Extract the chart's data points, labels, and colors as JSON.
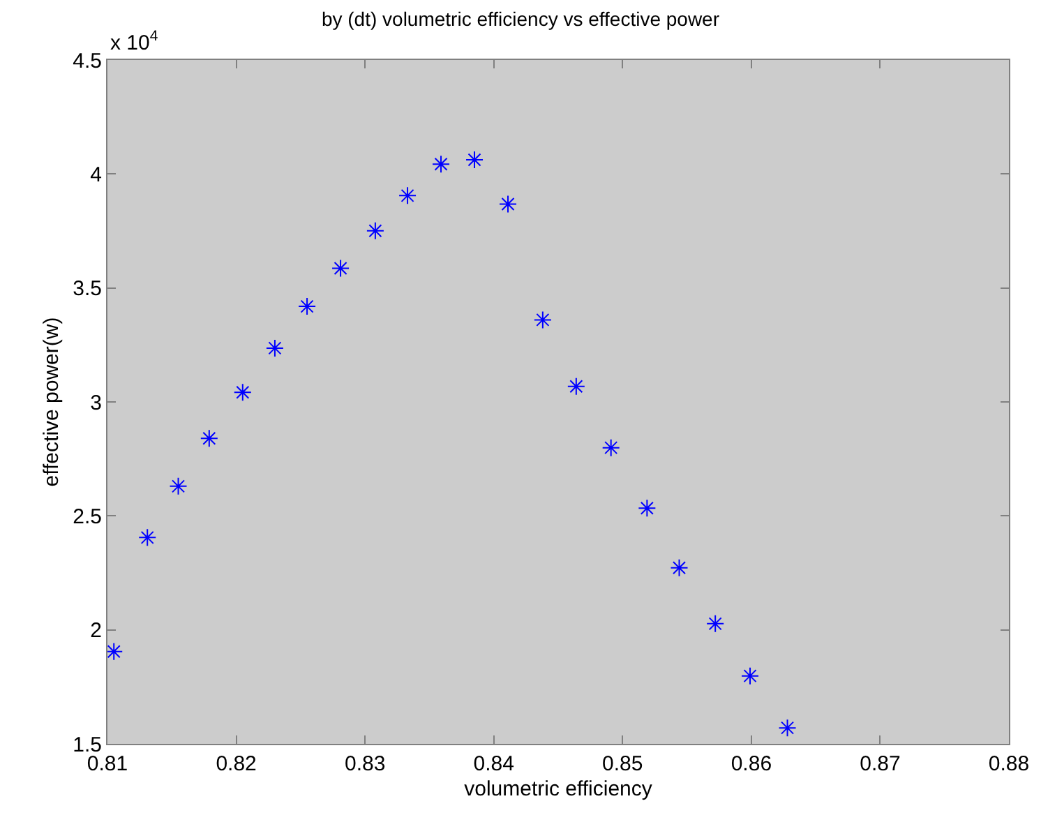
{
  "chart_data": {
    "type": "scatter",
    "title": "by (dt) volumetric efficiency vs effective power",
    "xlabel": "volumetric efficiency",
    "ylabel": "effective power(w)",
    "annotations": [
      "x 10$^{4}$"
    ],
    "x": [
      0.8105,
      0.8131,
      0.8155,
      0.8179,
      0.8205,
      0.823,
      0.8255,
      0.8281,
      0.8308,
      0.8333,
      0.8359,
      0.8385,
      0.8411,
      0.8438,
      0.8464,
      0.8491,
      0.8519,
      0.8544,
      0.8572,
      0.8599,
      0.8628
    ],
    "series": [
      {
        "color": "#0000ff",
        "values": [
          1.905,
          2.405,
          2.63,
          2.84,
          3.042,
          3.236,
          3.419,
          3.586,
          3.751,
          3.905,
          4.043,
          4.062,
          3.868,
          3.36,
          3.068,
          2.799,
          2.534,
          2.272,
          2.027,
          1.798,
          1.57
        ]
      }
    ],
    "xlim": [
      0.81,
      0.88
    ],
    "xticks": [
      0.81,
      0.82,
      0.83,
      0.84,
      0.85,
      0.86,
      0.87,
      0.88
    ],
    "ylim": [
      1.5,
      4.5
    ],
    "yticks": [
      1.5,
      2,
      2.5,
      3,
      3.5,
      4,
      4.5
    ],
    "grid": false,
    "marker": "cross"
  }
}
